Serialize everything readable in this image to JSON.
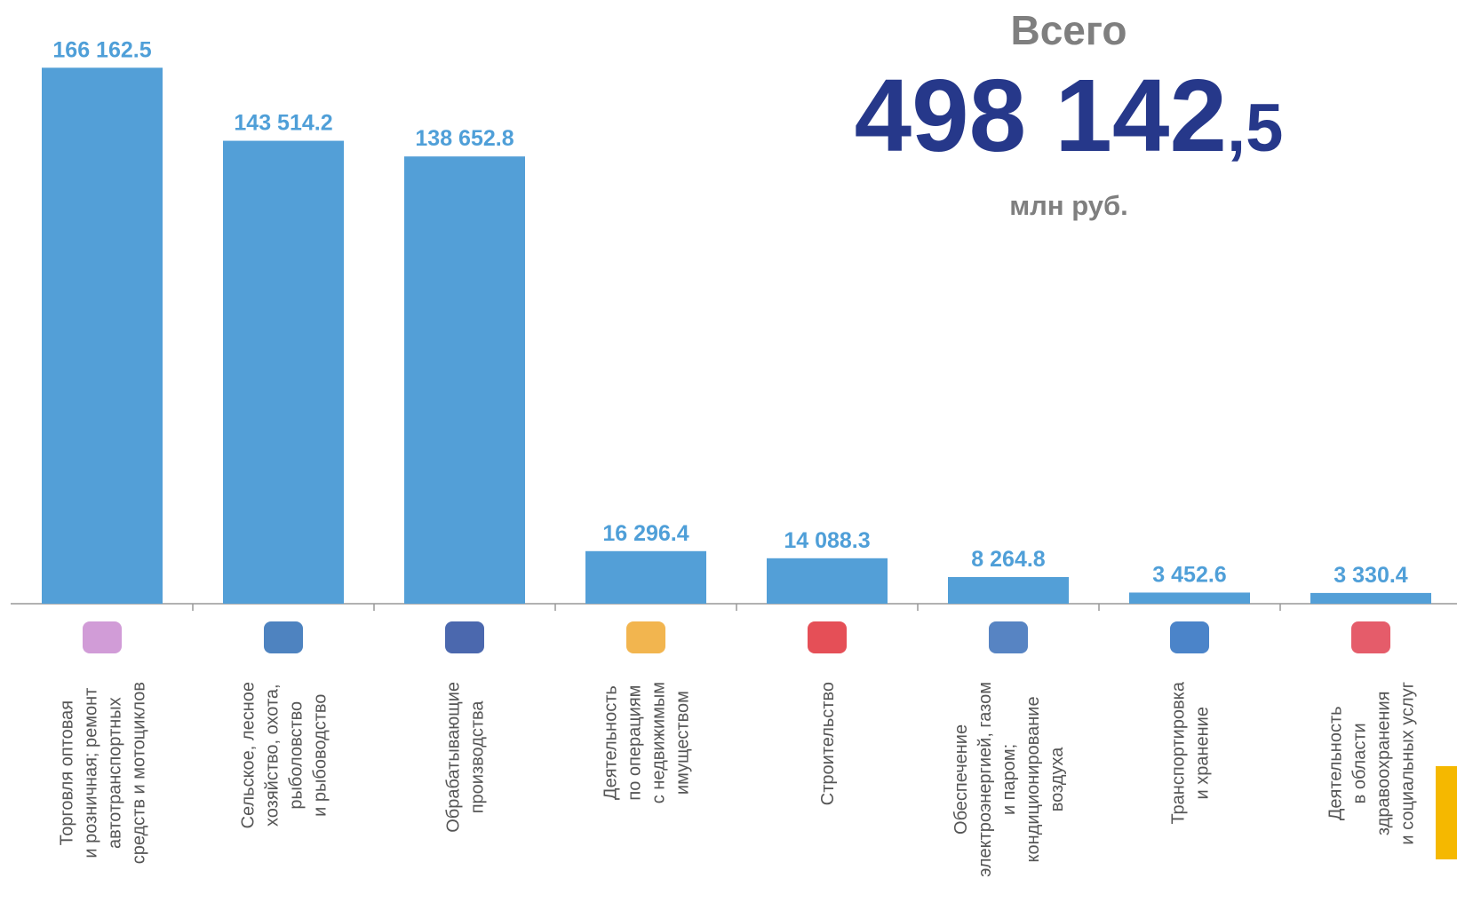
{
  "chart_data": {
    "type": "bar",
    "categories": [
      [
        "Торговля оптовая",
        "и розничная; ремонт",
        "автотранспортных",
        "средств и мотоциклов"
      ],
      [
        "Сельское, лесное",
        "хозяйство, охота,",
        "рыболовство",
        "и рыбоводство"
      ],
      [
        "Обрабатывающие",
        "производства"
      ],
      [
        "Деятельность",
        "по операциям",
        "с недвижимым",
        "имуществом"
      ],
      [
        "Строительство"
      ],
      [
        "Обеспечение",
        "электроэнергией, газом",
        "и паром;",
        "кондиционирование",
        "воздуха"
      ],
      [
        "Транспортировка",
        "и хранение"
      ],
      [
        "Деятельность",
        "в области",
        "здравоохранения",
        "и социальных услуг"
      ]
    ],
    "values": [
      166162.5,
      143514.2,
      138652.8,
      16296.4,
      14088.3,
      8264.8,
      3452.6,
      3330.4
    ],
    "value_labels": [
      "166 162.5",
      "143 514.2",
      "138 652.8",
      "16 296.4",
      "14 088.3",
      "8 264.8",
      "3 452.6",
      "3 330.4"
    ],
    "color": "#539fd7",
    "ylim": [
      0,
      180000
    ],
    "total": {
      "title": "Всего",
      "integer_part": "498 142",
      "fraction_part": ",5",
      "unit": "млн руб."
    }
  }
}
